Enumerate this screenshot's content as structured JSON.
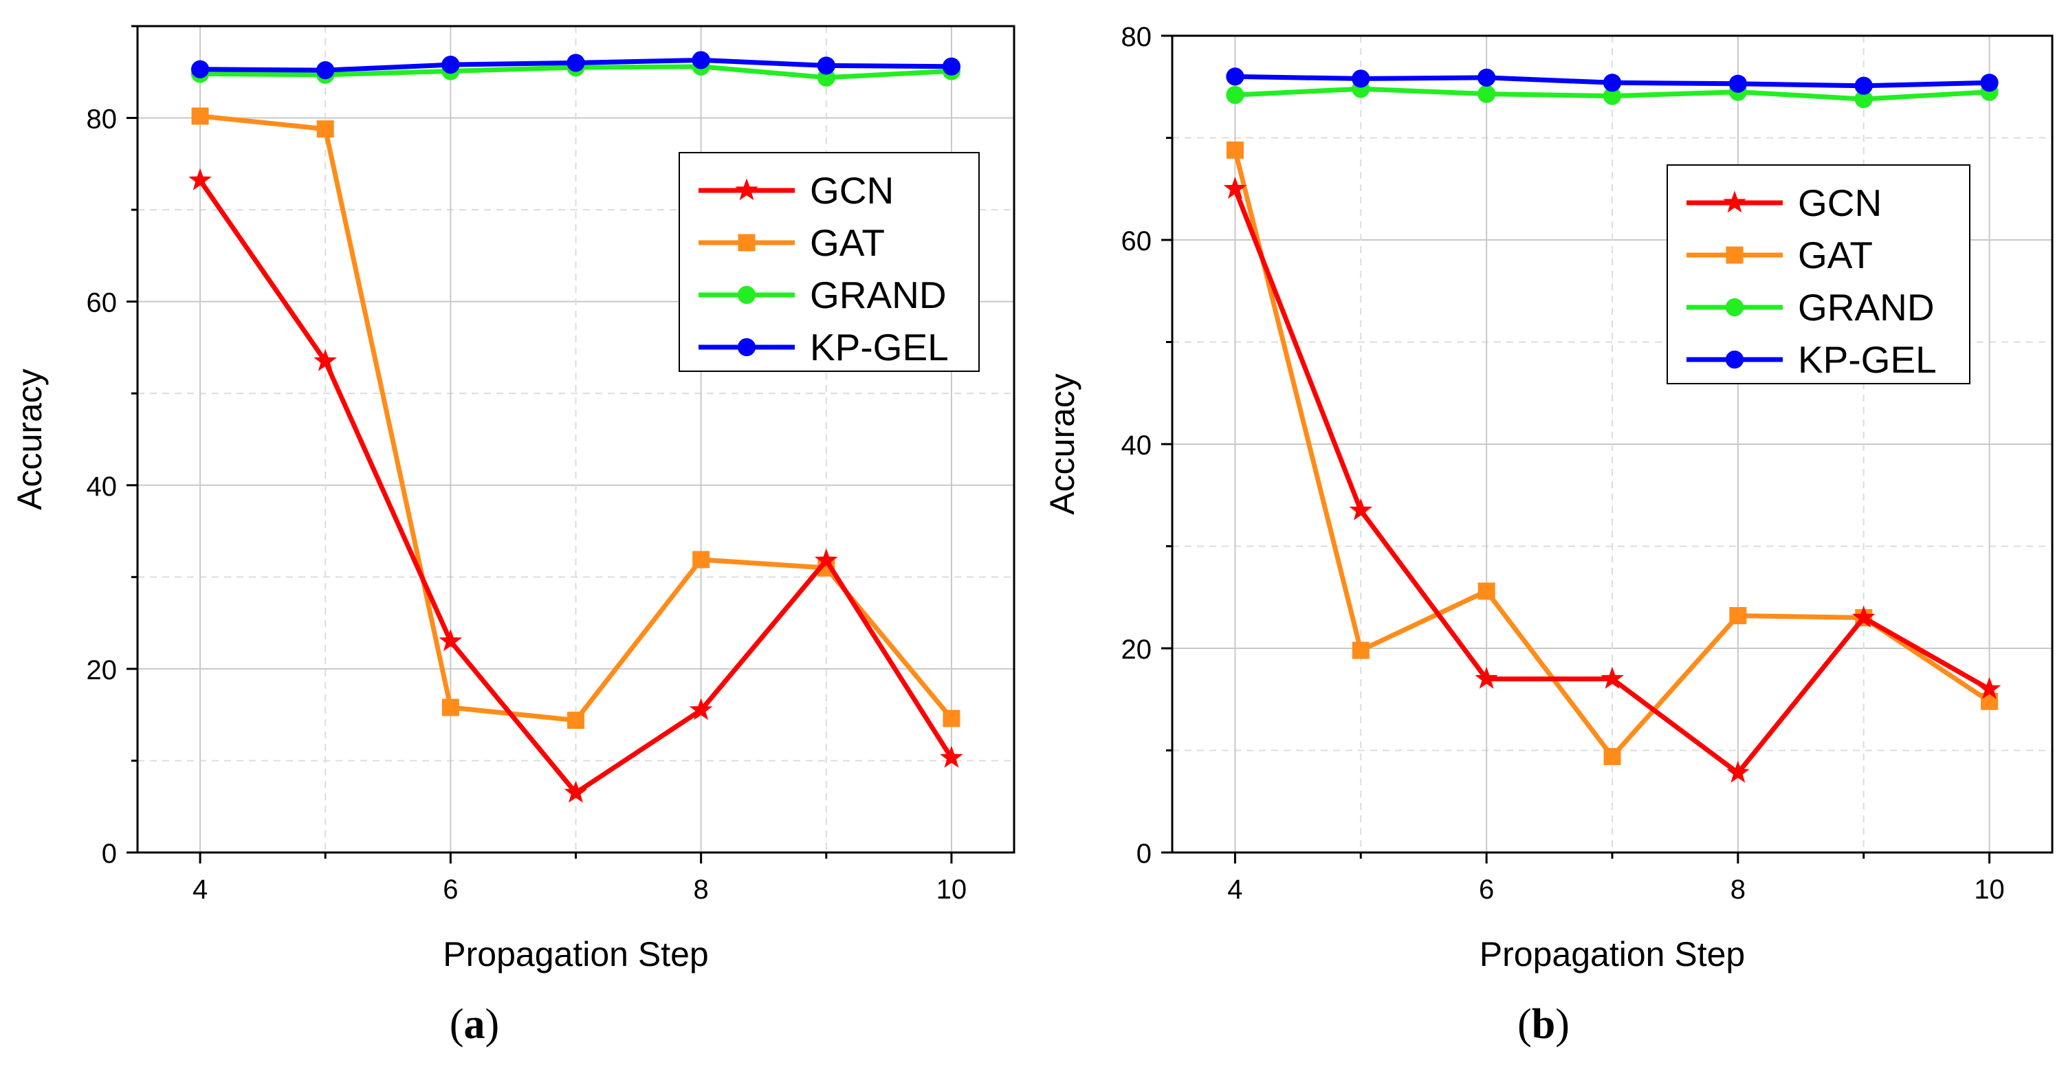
{
  "chart_data": [
    {
      "type": "line",
      "panel_label": "a",
      "title": "",
      "xlabel": "Propagation Step",
      "ylabel": "Accuracy",
      "xlim": [
        3.5,
        10.5
      ],
      "ylim": [
        0,
        90
      ],
      "xticks": [
        4,
        6,
        8,
        10
      ],
      "yticks": [
        0,
        20,
        40,
        60,
        80
      ],
      "x": [
        4,
        5,
        6,
        7,
        8,
        9,
        10
      ],
      "legend_position": "upper-right",
      "grid": true,
      "series": [
        {
          "name": "GCN",
          "color": "#ff0000",
          "marker": "star",
          "values": [
            73.2,
            53.5,
            23.0,
            6.5,
            15.5,
            31.8,
            10.3
          ]
        },
        {
          "name": "GAT",
          "color": "#ff8c1a",
          "marker": "square",
          "values": [
            80.2,
            78.8,
            15.8,
            14.4,
            31.9,
            31.0,
            14.6
          ]
        },
        {
          "name": "GRAND",
          "color": "#22ee22",
          "marker": "circle",
          "values": [
            84.8,
            84.7,
            85.1,
            85.5,
            85.6,
            84.4,
            85.1
          ]
        },
        {
          "name": "KP-GEL",
          "color": "#0000ff",
          "marker": "circle",
          "values": [
            85.3,
            85.2,
            85.8,
            86.0,
            86.3,
            85.7,
            85.6
          ]
        }
      ]
    },
    {
      "type": "line",
      "panel_label": "b",
      "title": "",
      "xlabel": "Propagation Step",
      "ylabel": "Accuracy",
      "xlim": [
        3.5,
        10.5
      ],
      "ylim": [
        0,
        80
      ],
      "xticks": [
        4,
        6,
        8,
        10
      ],
      "yticks": [
        0,
        20,
        40,
        60,
        80
      ],
      "x": [
        4,
        5,
        6,
        7,
        8,
        9,
        10
      ],
      "legend_position": "upper-right",
      "grid": true,
      "series": [
        {
          "name": "GCN",
          "color": "#ff0000",
          "marker": "star",
          "values": [
            65.0,
            33.5,
            17.0,
            17.0,
            7.8,
            23.0,
            16.0
          ]
        },
        {
          "name": "GAT",
          "color": "#ff8c1a",
          "marker": "square",
          "values": [
            68.8,
            19.8,
            25.6,
            9.4,
            23.2,
            23.0,
            14.8
          ]
        },
        {
          "name": "GRAND",
          "color": "#22ee22",
          "marker": "circle",
          "values": [
            74.2,
            74.8,
            74.3,
            74.1,
            74.5,
            73.8,
            74.5
          ]
        },
        {
          "name": "KP-GEL",
          "color": "#0000ff",
          "marker": "circle",
          "values": [
            76.0,
            75.8,
            75.9,
            75.4,
            75.3,
            75.1,
            75.4
          ]
        }
      ]
    }
  ]
}
